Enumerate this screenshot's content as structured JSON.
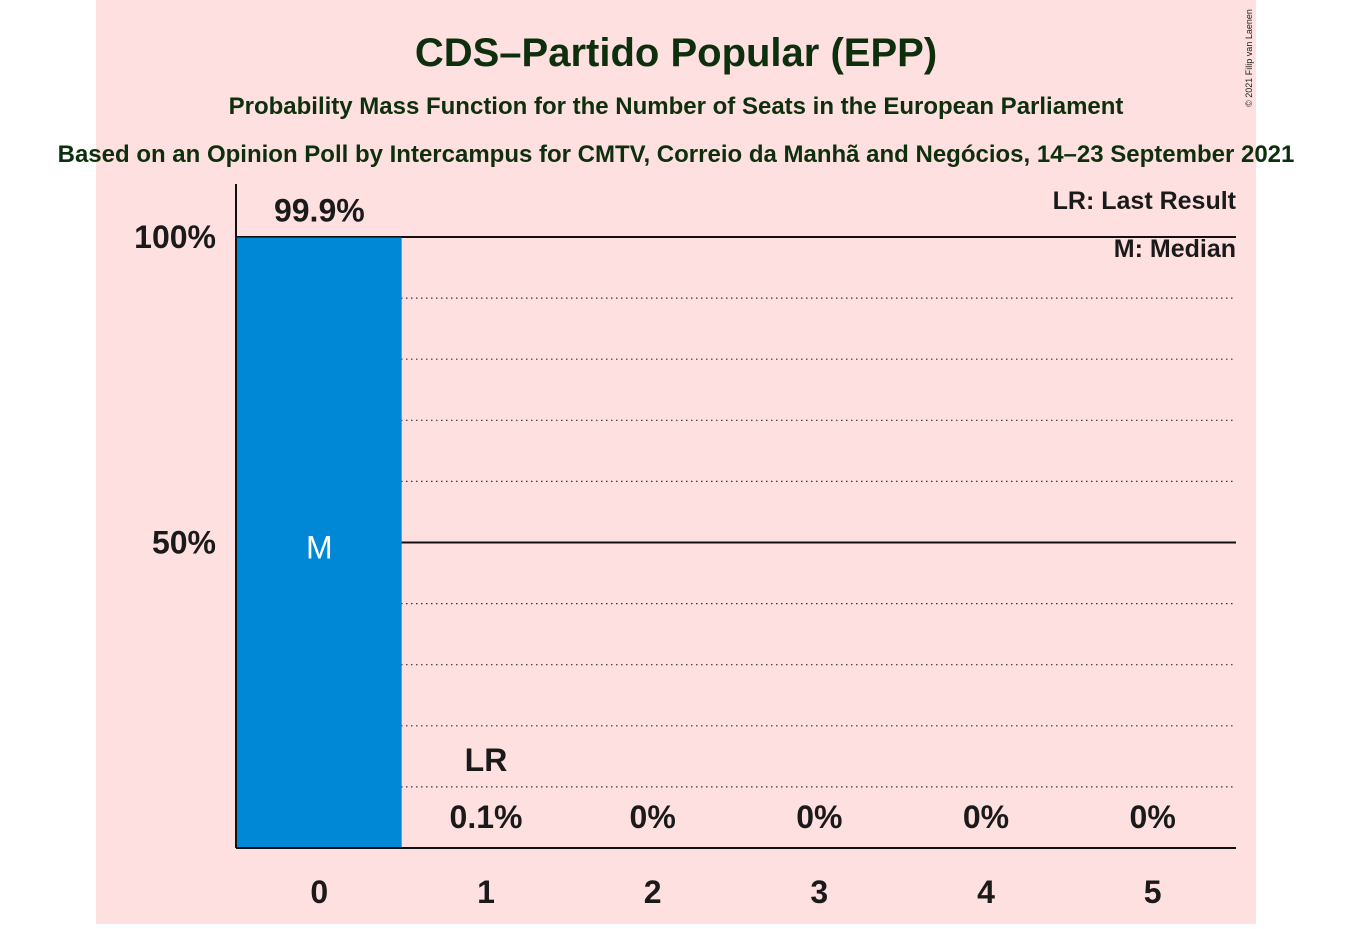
{
  "chart_data": {
    "type": "bar",
    "title": "CDS–Partido Popular (EPP)",
    "subtitle": "Probability Mass Function for the Number of Seats in the European Parliament",
    "source_note": "Based on an Opinion Poll by Intercampus for CMTV, Correio da Manhã and Negócios, 14–23 September 2021",
    "copyright": "© 2021 Filip van Laenen",
    "categories": [
      "0",
      "1",
      "2",
      "3",
      "4",
      "5"
    ],
    "values": [
      99.9,
      0.1,
      0,
      0,
      0,
      0
    ],
    "value_labels": [
      "99.9%",
      "0.1%",
      "0%",
      "0%",
      "0%",
      "0%"
    ],
    "ylim": [
      0,
      100
    ],
    "yticks": [
      {
        "value": 50,
        "label": "50%"
      },
      {
        "value": 100,
        "label": "100%"
      }
    ],
    "minor_gridlines": [
      10,
      20,
      30,
      40,
      60,
      70,
      80,
      90
    ],
    "median_index": 0,
    "median_marker": "M",
    "last_result_index": 1,
    "last_result_marker": "LR",
    "legend": [
      "LR: Last Result",
      "M: Median"
    ],
    "legend_position": "top-right",
    "colors": {
      "background": "#ffe0e0",
      "bar": "#0087d6",
      "text": "#1a1a1a",
      "title": "#0d2f0d",
      "median_text": "#ffffff"
    }
  }
}
